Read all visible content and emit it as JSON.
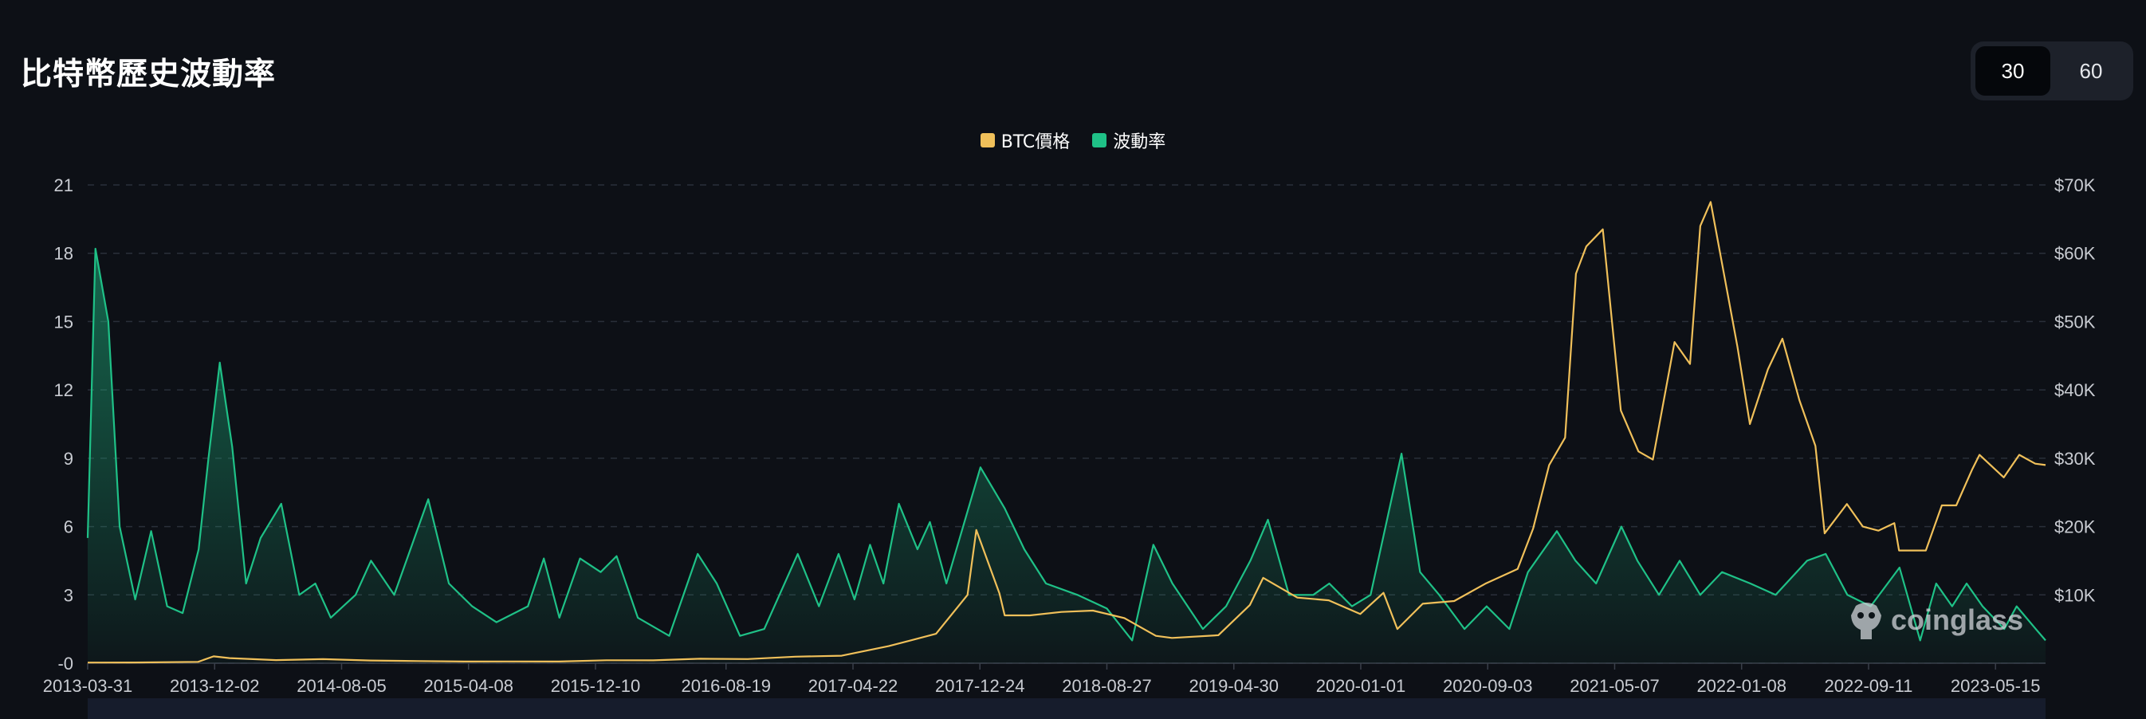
{
  "page": {
    "title": "比特幣歷史波動率"
  },
  "period_toggle": {
    "options": [
      "30",
      "60"
    ],
    "selected": "30"
  },
  "watermark": {
    "text": "coinglass"
  },
  "colors": {
    "background": "#0d1016",
    "btc_price": "#f0c05a",
    "volatility": "#1fc187",
    "grid": "#2a2f3a",
    "toggle_bg": "#1d212a",
    "toggle_active": "#05070b"
  },
  "chart_data": {
    "type": "line",
    "title": "",
    "grid": true,
    "legend_placement": "top-center",
    "legend": [
      "BTC價格",
      "波動率"
    ],
    "y_left": {
      "ticks": [
        "-0",
        "3",
        "6",
        "9",
        "12",
        "15",
        "18",
        "21"
      ],
      "range": [
        0,
        21
      ]
    },
    "y_right": {
      "ticks": [
        "$10K",
        "$20K",
        "$30K",
        "$40K",
        "$50K",
        "$60K",
        "$70K"
      ],
      "range": [
        0,
        70000
      ]
    },
    "x_ticks": [
      "2013-03-31",
      "2013-12-02",
      "2014-08-05",
      "2015-04-08",
      "2015-12-10",
      "2016-08-19",
      "2017-04-22",
      "2017-12-24",
      "2018-08-27",
      "2019-04-30",
      "2020-01-01",
      "2020-09-03",
      "2021-05-07",
      "2022-01-08",
      "2022-09-11",
      "2023-05-15"
    ],
    "x_range": [
      "2013-03-31",
      "2023-08-20"
    ],
    "series": [
      {
        "name": "BTC價格",
        "axis": "right",
        "style": "line",
        "points": [
          [
            "2013-03-31",
            90
          ],
          [
            "2013-06-30",
            100
          ],
          [
            "2013-10-31",
            200
          ],
          [
            "2013-11-30",
            1000
          ],
          [
            "2013-12-31",
            750
          ],
          [
            "2014-03-31",
            450
          ],
          [
            "2014-06-30",
            600
          ],
          [
            "2014-09-30",
            400
          ],
          [
            "2014-12-31",
            320
          ],
          [
            "2015-03-31",
            250
          ],
          [
            "2015-06-30",
            260
          ],
          [
            "2015-09-30",
            240
          ],
          [
            "2015-12-31",
            430
          ],
          [
            "2016-03-31",
            420
          ],
          [
            "2016-06-30",
            650
          ],
          [
            "2016-09-30",
            610
          ],
          [
            "2016-12-31",
            960
          ],
          [
            "2017-03-31",
            1100
          ],
          [
            "2017-06-30",
            2500
          ],
          [
            "2017-09-30",
            4300
          ],
          [
            "2017-11-30",
            10000
          ],
          [
            "2017-12-17",
            19500
          ],
          [
            "2018-01-31",
            10200
          ],
          [
            "2018-02-10",
            7000
          ],
          [
            "2018-03-31",
            7000
          ],
          [
            "2018-05-31",
            7500
          ],
          [
            "2018-07-31",
            7700
          ],
          [
            "2018-09-30",
            6600
          ],
          [
            "2018-11-30",
            4000
          ],
          [
            "2018-12-31",
            3700
          ],
          [
            "2019-03-31",
            4100
          ],
          [
            "2019-05-31",
            8500
          ],
          [
            "2019-06-26",
            12500
          ],
          [
            "2019-08-31",
            9600
          ],
          [
            "2019-10-31",
            9200
          ],
          [
            "2019-12-31",
            7200
          ],
          [
            "2020-02-14",
            10300
          ],
          [
            "2020-03-12",
            5000
          ],
          [
            "2020-04-30",
            8700
          ],
          [
            "2020-06-30",
            9100
          ],
          [
            "2020-08-31",
            11700
          ],
          [
            "2020-10-31",
            13800
          ],
          [
            "2020-11-30",
            19700
          ],
          [
            "2020-12-31",
            29000
          ],
          [
            "2021-01-31",
            33000
          ],
          [
            "2021-02-21",
            57000
          ],
          [
            "2021-03-13",
            61000
          ],
          [
            "2021-04-14",
            63500
          ],
          [
            "2021-05-19",
            37000
          ],
          [
            "2021-06-22",
            31000
          ],
          [
            "2021-07-20",
            29800
          ],
          [
            "2021-08-31",
            47000
          ],
          [
            "2021-09-30",
            43800
          ],
          [
            "2021-10-20",
            64000
          ],
          [
            "2021-11-09",
            67500
          ],
          [
            "2021-12-31",
            46300
          ],
          [
            "2022-01-24",
            35000
          ],
          [
            "2022-02-28",
            43000
          ],
          [
            "2022-03-28",
            47500
          ],
          [
            "2022-04-30",
            38500
          ],
          [
            "2022-05-31",
            31800
          ],
          [
            "2022-06-18",
            19000
          ],
          [
            "2022-07-31",
            23300
          ],
          [
            "2022-08-31",
            20000
          ],
          [
            "2022-09-30",
            19400
          ],
          [
            "2022-10-31",
            20500
          ],
          [
            "2022-11-09",
            16500
          ],
          [
            "2022-12-31",
            16500
          ],
          [
            "2023-01-31",
            23100
          ],
          [
            "2023-02-28",
            23100
          ],
          [
            "2023-03-31",
            28400
          ],
          [
            "2023-04-14",
            30500
          ],
          [
            "2023-05-31",
            27200
          ],
          [
            "2023-06-30",
            30500
          ],
          [
            "2023-07-31",
            29200
          ],
          [
            "2023-08-20",
            29000
          ]
        ]
      },
      {
        "name": "波動率",
        "axis": "left",
        "style": "area",
        "points": [
          [
            "2013-03-31",
            5.5
          ],
          [
            "2013-04-15",
            18.2
          ],
          [
            "2013-05-10",
            15.0
          ],
          [
            "2013-06-01",
            6.0
          ],
          [
            "2013-07-01",
            2.8
          ],
          [
            "2013-08-01",
            5.8
          ],
          [
            "2013-09-01",
            2.5
          ],
          [
            "2013-10-01",
            2.2
          ],
          [
            "2013-11-01",
            5.0
          ],
          [
            "2013-11-20",
            9.0
          ],
          [
            "2013-12-12",
            13.2
          ],
          [
            "2014-01-05",
            9.5
          ],
          [
            "2014-02-01",
            3.5
          ],
          [
            "2014-03-01",
            5.5
          ],
          [
            "2014-04-10",
            7.0
          ],
          [
            "2014-05-15",
            3.0
          ],
          [
            "2014-06-15",
            3.5
          ],
          [
            "2014-07-15",
            2.0
          ],
          [
            "2014-09-01",
            3.0
          ],
          [
            "2014-10-01",
            4.5
          ],
          [
            "2014-11-15",
            3.0
          ],
          [
            "2015-01-20",
            7.2
          ],
          [
            "2015-03-01",
            3.5
          ],
          [
            "2015-04-15",
            2.5
          ],
          [
            "2015-06-01",
            1.8
          ],
          [
            "2015-08-01",
            2.5
          ],
          [
            "2015-09-01",
            4.6
          ],
          [
            "2015-10-01",
            2.0
          ],
          [
            "2015-11-10",
            4.6
          ],
          [
            "2015-12-20",
            4.0
          ],
          [
            "2016-01-20",
            4.7
          ],
          [
            "2016-03-01",
            2.0
          ],
          [
            "2016-05-01",
            1.2
          ],
          [
            "2016-06-25",
            4.8
          ],
          [
            "2016-08-01",
            3.5
          ],
          [
            "2016-09-15",
            1.2
          ],
          [
            "2016-11-01",
            1.5
          ],
          [
            "2017-01-05",
            4.8
          ],
          [
            "2017-02-15",
            2.5
          ],
          [
            "2017-03-25",
            4.8
          ],
          [
            "2017-04-25",
            2.8
          ],
          [
            "2017-05-25",
            5.2
          ],
          [
            "2017-06-20",
            3.5
          ],
          [
            "2017-07-20",
            7.0
          ],
          [
            "2017-08-25",
            5.0
          ],
          [
            "2017-09-18",
            6.2
          ],
          [
            "2017-10-20",
            3.5
          ],
          [
            "2017-12-25",
            8.6
          ],
          [
            "2018-02-10",
            6.8
          ],
          [
            "2018-03-20",
            5.0
          ],
          [
            "2018-05-01",
            3.5
          ],
          [
            "2018-07-01",
            3.0
          ],
          [
            "2018-08-27",
            2.4
          ],
          [
            "2018-10-15",
            1.0
          ],
          [
            "2018-11-25",
            5.2
          ],
          [
            "2019-01-01",
            3.5
          ],
          [
            "2019-03-01",
            1.5
          ],
          [
            "2019-04-15",
            2.5
          ],
          [
            "2019-06-01",
            4.5
          ],
          [
            "2019-07-05",
            6.3
          ],
          [
            "2019-08-15",
            3.0
          ],
          [
            "2019-10-01",
            3.0
          ],
          [
            "2019-11-01",
            3.5
          ],
          [
            "2019-12-15",
            2.5
          ],
          [
            "2020-01-20",
            3.0
          ],
          [
            "2020-03-20",
            9.2
          ],
          [
            "2020-04-25",
            4.0
          ],
          [
            "2020-06-01",
            3.0
          ],
          [
            "2020-07-20",
            1.5
          ],
          [
            "2020-09-01",
            2.5
          ],
          [
            "2020-10-15",
            1.5
          ],
          [
            "2020-11-20",
            4.0
          ],
          [
            "2021-01-15",
            5.8
          ],
          [
            "2021-02-20",
            4.5
          ],
          [
            "2021-04-01",
            3.5
          ],
          [
            "2021-05-20",
            6.0
          ],
          [
            "2021-06-20",
            4.5
          ],
          [
            "2021-08-01",
            3.0
          ],
          [
            "2021-09-10",
            4.5
          ],
          [
            "2021-10-20",
            3.0
          ],
          [
            "2021-12-01",
            4.0
          ],
          [
            "2022-01-25",
            3.5
          ],
          [
            "2022-03-15",
            3.0
          ],
          [
            "2022-05-15",
            4.5
          ],
          [
            "2022-06-20",
            4.8
          ],
          [
            "2022-08-01",
            3.0
          ],
          [
            "2022-09-15",
            2.5
          ],
          [
            "2022-11-10",
            4.2
          ],
          [
            "2022-12-20",
            1.0
          ],
          [
            "2023-01-20",
            3.5
          ],
          [
            "2023-02-20",
            2.5
          ],
          [
            "2023-03-20",
            3.5
          ],
          [
            "2023-04-20",
            2.5
          ],
          [
            "2023-06-01",
            1.5
          ],
          [
            "2023-06-25",
            2.5
          ],
          [
            "2023-08-01",
            1.5
          ],
          [
            "2023-08-20",
            1.0
          ]
        ]
      }
    ]
  }
}
